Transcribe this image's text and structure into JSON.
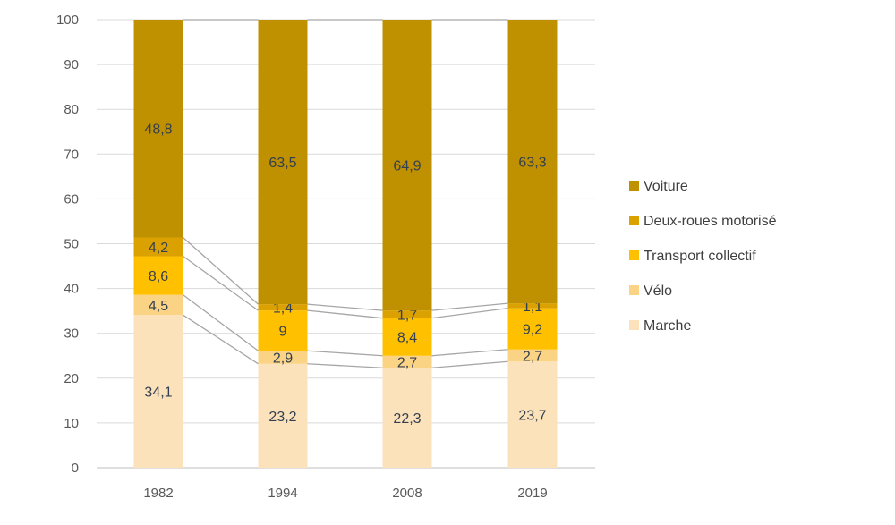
{
  "chart_data": {
    "type": "bar",
    "stacked": true,
    "categories": [
      "1982",
      "1994",
      "2008",
      "2019"
    ],
    "series": [
      {
        "name": "Marche",
        "color": "#FCE2BA",
        "values": [
          34.1,
          23.2,
          22.3,
          23.7
        ]
      },
      {
        "name": "Vélo",
        "color": "#FBD384",
        "values": [
          4.5,
          2.9,
          2.7,
          2.7
        ]
      },
      {
        "name": "Transport collectif",
        "color": "#FFC000",
        "values": [
          8.6,
          9,
          8.4,
          9.2
        ]
      },
      {
        "name": "Deux-roues motorisé",
        "color": "#DBA100",
        "values": [
          4.2,
          1.4,
          1.7,
          1.1
        ]
      },
      {
        "name": "Voiture",
        "color": "#BF9000",
        "values": [
          48.8,
          63.5,
          64.9,
          63.3
        ]
      }
    ],
    "data_labels": [
      [
        "34,1",
        "23,2",
        "22,3",
        "23,7"
      ],
      [
        "4,5",
        "2,9",
        "2,7",
        "2,7"
      ],
      [
        "8,6",
        "9",
        "8,4",
        "9,2"
      ],
      [
        "4,2",
        "1,4",
        "1,7",
        "1,1"
      ],
      [
        "48,8",
        "63,5",
        "64,9",
        "63,3"
      ]
    ],
    "ylim": [
      0,
      100
    ],
    "yticks": [
      "0",
      "10",
      "20",
      "30",
      "40",
      "50",
      "60",
      "70",
      "80",
      "90",
      "100"
    ],
    "grid": true,
    "series_lines": true,
    "legend_position": "right",
    "title": "",
    "xlabel": "",
    "ylabel": ""
  }
}
